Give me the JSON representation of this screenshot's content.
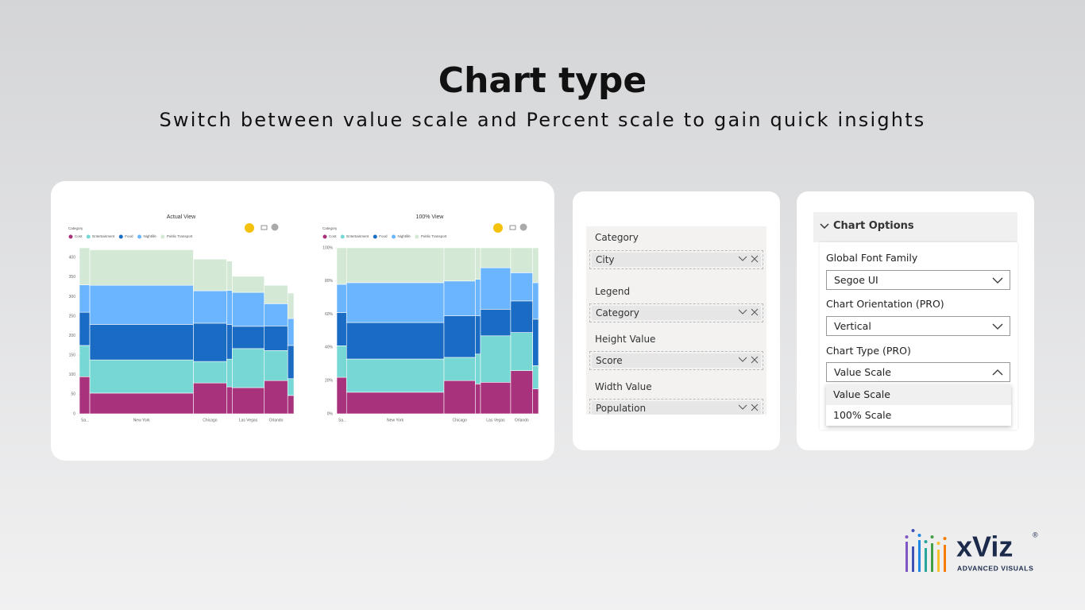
{
  "header": {
    "title": "Chart type",
    "subtitle": "Switch between value scale and Percent scale to gain quick insights"
  },
  "chart_data": [
    {
      "type": "mekko",
      "title": "Actual View",
      "legend_title": "Category",
      "categories": [
        "Sa...",
        "New York",
        "Chicago",
        null,
        "Las Vegas",
        "Orlando",
        null
      ],
      "widths": [
        0.84,
        8.4,
        2.7,
        0.45,
        2.6,
        1.9,
        0.5
      ],
      "series": [
        {
          "name": "Cost",
          "color": "#a8327c",
          "values": [
            95,
            53,
            79,
            69,
            67,
            85,
            47
          ]
        },
        {
          "name": "Entertainment",
          "color": "#76d7d4",
          "values": [
            80,
            85,
            55,
            71,
            100,
            77,
            43
          ]
        },
        {
          "name": "Food",
          "color": "#1a6bc4",
          "values": [
            85,
            91,
            98,
            89,
            57,
            63,
            85
          ]
        },
        {
          "name": "Nightlife",
          "color": "#6bb5ff",
          "values": [
            70,
            100,
            83,
            87,
            87,
            57,
            69
          ]
        },
        {
          "name": "Public Transport",
          "color": "#d3e8d5",
          "values": [
            95,
            91,
            81,
            75,
            41,
            47,
            65
          ]
        }
      ],
      "ylim": [
        0,
        425
      ],
      "yticks": [
        0,
        50,
        100,
        150,
        200,
        250,
        300,
        350,
        400
      ]
    },
    {
      "type": "mekko",
      "title": "100% View",
      "legend_title": "Category",
      "categories": [
        "Sa...",
        "New York",
        "Chicago",
        null,
        "Las Vegas",
        "Orlando",
        null
      ],
      "widths": [
        0.84,
        8.4,
        2.7,
        0.45,
        2.6,
        1.9,
        0.5
      ],
      "series": [
        {
          "name": "Cost",
          "color": "#a8327c",
          "values": [
            22,
            13,
            20,
            18,
            19,
            26,
            15
          ]
        },
        {
          "name": "Entertainment",
          "color": "#76d7d4",
          "values": [
            19,
            20,
            14,
            18,
            28,
            23,
            14
          ]
        },
        {
          "name": "Food",
          "color": "#1a6bc4",
          "values": [
            20,
            22,
            25,
            23,
            16,
            19,
            28
          ]
        },
        {
          "name": "Nightlife",
          "color": "#6bb5ff",
          "values": [
            17,
            24,
            21,
            22,
            25,
            17,
            22
          ]
        },
        {
          "name": "Public Transport",
          "color": "#d3e8d5",
          "values": [
            22,
            21,
            20,
            19,
            12,
            15,
            21
          ]
        }
      ],
      "ylim": [
        0,
        100
      ],
      "yticks": [
        {
          "value": 0,
          "label": "0%"
        },
        {
          "value": 20,
          "label": "20%"
        },
        {
          "value": 40,
          "label": "40%"
        },
        {
          "value": 60,
          "label": "60%"
        },
        {
          "value": 80,
          "label": "80%"
        },
        {
          "value": 100,
          "label": "100%"
        }
      ]
    }
  ],
  "fields": {
    "wells": [
      {
        "label": "Category",
        "field": "City"
      },
      {
        "label": "Legend",
        "field": "Category"
      },
      {
        "label": "Height Value",
        "field": "Score"
      },
      {
        "label": "Width Value",
        "field": "Population"
      }
    ]
  },
  "options": {
    "section": "Chart Options",
    "settings": [
      {
        "label": "Global Font Family",
        "value": "Segoe UI"
      },
      {
        "label": "Chart Orientation (PRO)",
        "value": "Vertical"
      },
      {
        "label": "Chart Type (PRO)",
        "value": "Value Scale"
      }
    ],
    "menu": [
      "Value Scale",
      "100% Scale"
    ]
  },
  "logo": {
    "name": "xViz",
    "mark": "®",
    "tagline": "ADVANCED VISUALS"
  }
}
